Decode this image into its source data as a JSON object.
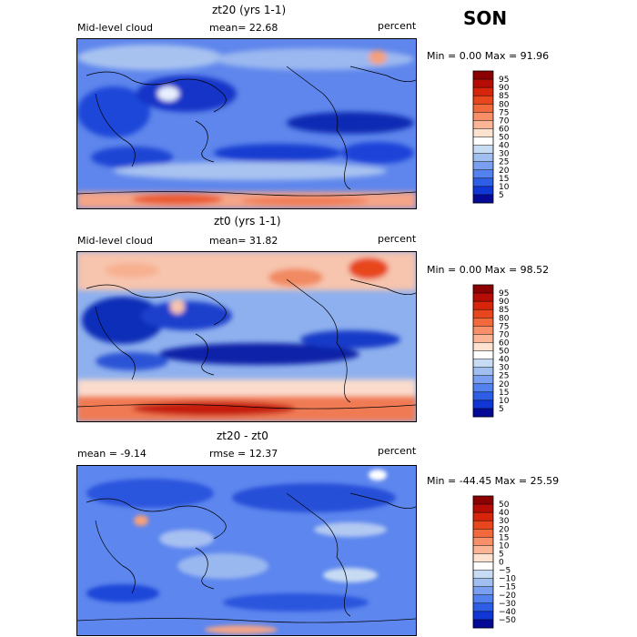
{
  "season": "SON",
  "panels": [
    {
      "title": "zt20 (yrs 1-1)",
      "left_label": "Mid-level cloud",
      "center_label": "mean=  22.68",
      "right_label": "percent",
      "minmax": "Min =    0.00 Max =   91.96"
    },
    {
      "title": "zt0 (yrs 1-1)",
      "left_label": "Mid-level cloud",
      "center_label": "mean=  31.82",
      "right_label": "percent",
      "minmax": "Min =    0.00 Max =   98.52"
    },
    {
      "title": "zt20 - zt0",
      "left_label": "mean =  -9.14",
      "center_label": "rmse =  12.37",
      "right_label": "percent",
      "minmax": "Min = -44.45 Max =   25.59"
    }
  ],
  "colorbars": [
    {
      "labels": [
        "95",
        "90",
        "85",
        "80",
        "75",
        "70",
        "60",
        "50",
        "40",
        "30",
        "25",
        "20",
        "15",
        "10",
        "5"
      ],
      "colors": [
        "#8b0000",
        "#b50d06",
        "#d7250c",
        "#e8461c",
        "#f26a3b",
        "#f98f68",
        "#fbb596",
        "#fde2d0",
        "#ffffff",
        "#c7dcf3",
        "#a0bef0",
        "#7a9ff0",
        "#5382f0",
        "#2e5ee6",
        "#1136d6",
        "#050a96"
      ]
    },
    {
      "labels": [
        "95",
        "90",
        "85",
        "80",
        "75",
        "70",
        "60",
        "50",
        "40",
        "30",
        "25",
        "20",
        "15",
        "10",
        "5"
      ],
      "colors": [
        "#8b0000",
        "#b50d06",
        "#d7250c",
        "#e8461c",
        "#f26a3b",
        "#f98f68",
        "#fbb596",
        "#fde2d0",
        "#ffffff",
        "#c7dcf3",
        "#a0bef0",
        "#7a9ff0",
        "#5382f0",
        "#2e5ee6",
        "#1136d6",
        "#050a96"
      ]
    },
    {
      "labels": [
        "50",
        "40",
        "30",
        "20",
        "15",
        "10",
        "5",
        "0",
        "−5",
        "−10",
        "−15",
        "−20",
        "−30",
        "−40",
        "−50"
      ],
      "colors": [
        "#8b0000",
        "#b50d06",
        "#d7250c",
        "#e8461c",
        "#f26a3b",
        "#f98f68",
        "#fbb596",
        "#fde2d0",
        "#ffffff",
        "#c7dcf3",
        "#a0bef0",
        "#7a9ff0",
        "#5382f0",
        "#2e5ee6",
        "#1136d6",
        "#050a96"
      ]
    }
  ],
  "chart_data": [
    {
      "type": "heatmap",
      "title": "zt20 (yrs 1-1)",
      "variable": "Mid-level cloud",
      "units": "percent",
      "season": "SON",
      "mean": 22.68,
      "min": 0.0,
      "max": 91.96,
      "contour_levels": [
        5,
        10,
        15,
        20,
        25,
        30,
        40,
        50,
        60,
        70,
        75,
        80,
        85,
        90,
        95
      ]
    },
    {
      "type": "heatmap",
      "title": "zt0 (yrs 1-1)",
      "variable": "Mid-level cloud",
      "units": "percent",
      "season": "SON",
      "mean": 31.82,
      "min": 0.0,
      "max": 98.52,
      "contour_levels": [
        5,
        10,
        15,
        20,
        25,
        30,
        40,
        50,
        60,
        70,
        75,
        80,
        85,
        90,
        95
      ]
    },
    {
      "type": "heatmap",
      "title": "zt20 - zt0",
      "units": "percent",
      "season": "SON",
      "mean": -9.14,
      "rmse": 12.37,
      "min": -44.45,
      "max": 25.59,
      "contour_levels": [
        -50,
        -40,
        -30,
        -20,
        -15,
        -10,
        -5,
        0,
        5,
        10,
        15,
        20,
        30,
        40,
        50
      ]
    }
  ]
}
